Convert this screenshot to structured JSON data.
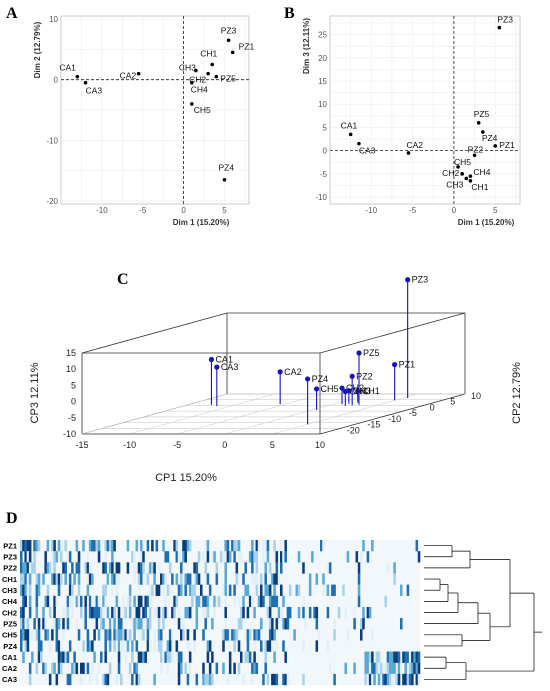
{
  "panels": {
    "a": "A",
    "b": "B",
    "c": "C",
    "d": "D"
  },
  "chart_data": [
    {
      "panel": "A",
      "type": "scatter",
      "xlabel": "Dim 1 (15.20%)",
      "ylabel": "Dim 2 (12.79%)",
      "xlim": [
        -15,
        8
      ],
      "ylim": [
        -20.5,
        10.5
      ],
      "xticks": [
        -10,
        -5,
        0,
        5
      ],
      "yticks": [
        -20,
        -10,
        0,
        10
      ],
      "grid": true,
      "points": [
        {
          "label": "CA1",
          "x": -13.0,
          "y": 0.5
        },
        {
          "label": "CA3",
          "x": -12.0,
          "y": -0.5
        },
        {
          "label": "CA2",
          "x": -5.5,
          "y": 1.0
        },
        {
          "label": "CH1",
          "x": 3.5,
          "y": 2.5
        },
        {
          "label": "CH3",
          "x": 1.5,
          "y": 1.5
        },
        {
          "label": "CH2",
          "x": 3.0,
          "y": 1.0
        },
        {
          "label": "PZ3",
          "x": 5.5,
          "y": 6.5
        },
        {
          "label": "PZ1",
          "x": 6.0,
          "y": 4.5
        },
        {
          "label": "PZ5",
          "x": 4.0,
          "y": 0.5
        },
        {
          "label": "CH4",
          "x": 1.0,
          "y": -0.5
        },
        {
          "label": "CH5",
          "x": 1.0,
          "y": -4.0
        },
        {
          "label": "PZ4",
          "x": 5.0,
          "y": -16.5
        }
      ]
    },
    {
      "panel": "B",
      "type": "scatter",
      "xlabel": "Dim 1 (15.20%)",
      "ylabel": "Dim 3 (12.11%)",
      "xlim": [
        -15,
        8
      ],
      "ylim": [
        -11.5,
        29
      ],
      "xticks": [
        -10,
        -5,
        0,
        5
      ],
      "yticks": [
        -10,
        -5,
        0,
        5,
        10,
        15,
        20,
        25
      ],
      "grid": true,
      "points": [
        {
          "label": "PZ3",
          "x": 5.5,
          "y": 26.5
        },
        {
          "label": "PZ5",
          "x": 3.0,
          "y": 6.0
        },
        {
          "label": "PZ4",
          "x": 3.5,
          "y": 4.0
        },
        {
          "label": "PZ1",
          "x": 5.0,
          "y": 1.0
        },
        {
          "label": "PZ2",
          "x": 2.5,
          "y": -1.0
        },
        {
          "label": "CA1",
          "x": -12.5,
          "y": 3.5
        },
        {
          "label": "CA3",
          "x": -11.5,
          "y": 1.5
        },
        {
          "label": "CA2",
          "x": -5.5,
          "y": -0.5
        },
        {
          "label": "CH5",
          "x": 0.5,
          "y": -3.5
        },
        {
          "label": "CH2",
          "x": 1.0,
          "y": -5.0
        },
        {
          "label": "CH4",
          "x": 2.0,
          "y": -5.5
        },
        {
          "label": "CH3",
          "x": 1.5,
          "y": -6.0
        },
        {
          "label": "CH1",
          "x": 2.0,
          "y": -6.5
        }
      ]
    },
    {
      "panel": "C",
      "type": "scatter",
      "xlabel": "CP1 15.20%",
      "ylabel": "CP2 12.79%",
      "zlabel": "CP3 12.11%",
      "xlim": [
        -15,
        10
      ],
      "ylim": [
        -25,
        10
      ],
      "zlim": [
        -10,
        15
      ],
      "xticks": [
        -15,
        -10,
        -5,
        0,
        5,
        10
      ],
      "yticks": [
        -20,
        -15,
        -10,
        -5,
        0,
        5,
        10
      ],
      "zticks": [
        -10,
        -5,
        0,
        5,
        10,
        15
      ],
      "points": [
        {
          "label": "CA1",
          "x": -12.5,
          "y": 0.5,
          "z": 4.0
        },
        {
          "label": "CA3",
          "x": -11.5,
          "y": -0.5,
          "z": 2.0
        },
        {
          "label": "CA2",
          "x": -5.5,
          "y": 1.0,
          "z": 0.0
        },
        {
          "label": "PZ4",
          "x": 5.0,
          "y": -16.5,
          "z": 4.0
        },
        {
          "label": "CH5",
          "x": 0.5,
          "y": -4.0,
          "z": -3.5
        },
        {
          "label": "CH2",
          "x": 1.0,
          "y": 1.0,
          "z": -5.0
        },
        {
          "label": "CH3",
          "x": 1.5,
          "y": 1.5,
          "z": -6.0
        },
        {
          "label": "CH1",
          "x": 2.0,
          "y": 2.5,
          "z": -6.5
        },
        {
          "label": "CH4",
          "x": 2.0,
          "y": -0.5,
          "z": -5.5
        },
        {
          "label": "PZ2",
          "x": 2.5,
          "y": 0.0,
          "z": -1.0
        },
        {
          "label": "PZ5",
          "x": 3.0,
          "y": 0.5,
          "z": 6.0
        },
        {
          "label": "PZ1",
          "x": 5.0,
          "y": 4.5,
          "z": 1.0
        },
        {
          "label": "PZ3",
          "x": 5.5,
          "y": 6.5,
          "z": 26.5
        }
      ]
    },
    {
      "panel": "D",
      "type": "heatmap",
      "rows": [
        "PZ1",
        "PZ3",
        "PZ2",
        "CH1",
        "CH3",
        "CH4",
        "CH2",
        "PZ5",
        "CH5",
        "PZ4",
        "CA1",
        "CA2",
        "CA3"
      ],
      "colors": [
        "#ffffff",
        "#e3f0f8",
        "#a9d1ea",
        "#5aa8d4",
        "#1f6eb0",
        "#0a3d7a"
      ]
    }
  ]
}
